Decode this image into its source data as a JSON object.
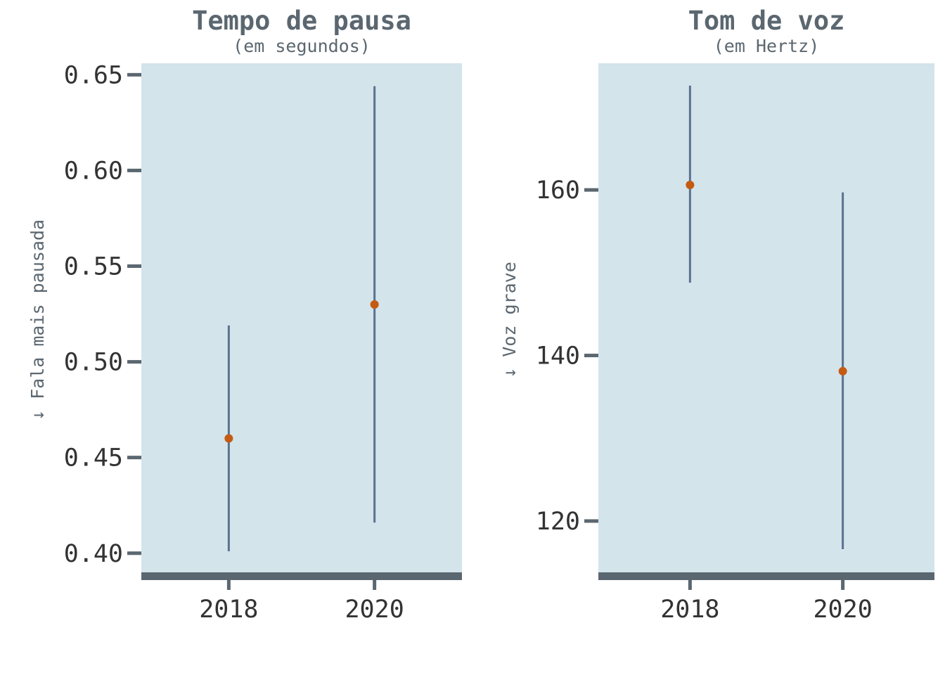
{
  "chart_data": [
    {
      "type": "errorbar",
      "title": "Tempo de pausa",
      "subtitle": "(em segundos)",
      "ylabel": "↓ Fala mais pausada",
      "categories": [
        "2018",
        "2020"
      ],
      "series": [
        {
          "values": [
            0.46,
            0.53
          ],
          "lower": [
            0.401,
            0.416
          ],
          "upper": [
            0.519,
            0.644
          ]
        }
      ],
      "yticks": [
        0.4,
        0.45,
        0.5,
        0.55,
        0.6,
        0.65
      ],
      "ytick_labels": [
        "0.40",
        "0.45",
        "0.50",
        "0.55",
        "0.60",
        "0.65"
      ],
      "ylim": [
        0.39,
        0.656
      ],
      "xlim": [
        2016.8,
        2021.2
      ]
    },
    {
      "type": "errorbar",
      "title": "Tom de voz",
      "subtitle": "(em Hertz)",
      "ylabel": "↓ Voz grave",
      "categories": [
        "2018",
        "2020"
      ],
      "series": [
        {
          "values": [
            160.6,
            138.1
          ],
          "lower": [
            148.8,
            116.6
          ],
          "upper": [
            172.6,
            159.7
          ]
        }
      ],
      "yticks": [
        120,
        140,
        160
      ],
      "ytick_labels": [
        "120",
        "140",
        "160"
      ],
      "ylim": [
        113.8,
        175.3
      ],
      "xlim": [
        2016.8,
        2021.2
      ]
    }
  ],
  "colors": {
    "panel_bg": "#d3e4eb",
    "axis": "#5b6770",
    "errorbar": "#5b7190",
    "point": "#c55a11",
    "text": "#333333",
    "title": "#5b6770"
  }
}
